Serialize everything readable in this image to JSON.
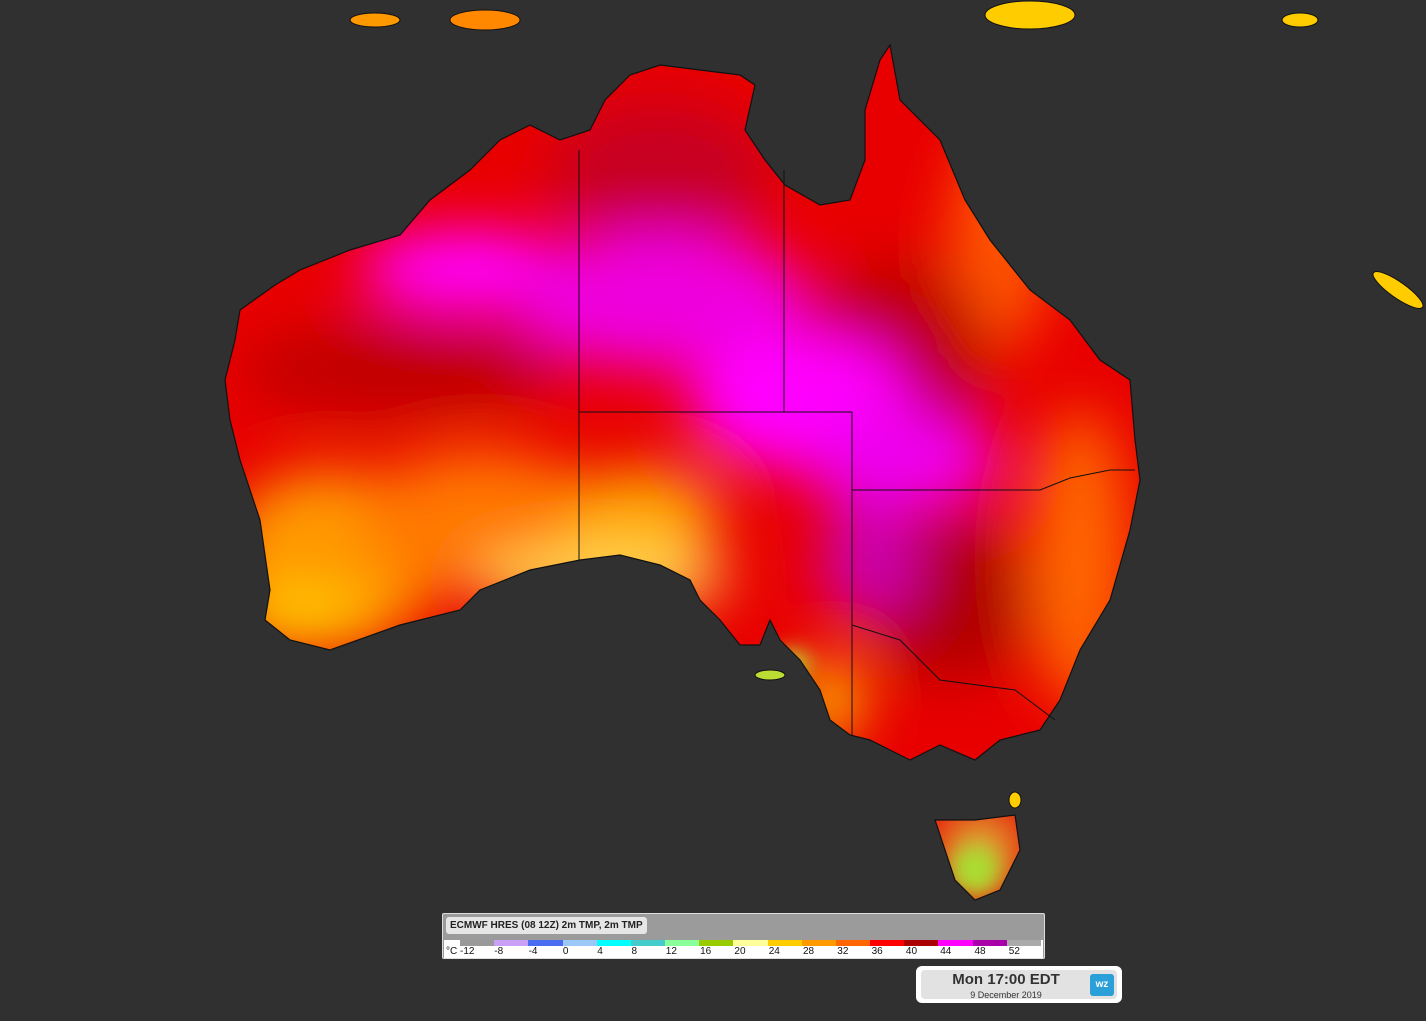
{
  "legend": {
    "title": "ECMWF HRES (08 12Z) 2m TMP, 2m TMP",
    "unit": "°C",
    "ticks": [
      "-12",
      "-8",
      "-4",
      "0",
      "4",
      "8",
      "12",
      "16",
      "20",
      "24",
      "28",
      "32",
      "36",
      "40",
      "44",
      "48",
      "52"
    ],
    "colors": [
      "#9a9a9a",
      "#c9a0f5",
      "#4a6cf0",
      "#9cc8f8",
      "#00ffff",
      "#44cccc",
      "#88ff99",
      "#99cc00",
      "#ffff99",
      "#ffcc00",
      "#ff9900",
      "#ff6600",
      "#ff0000",
      "#aa0000",
      "#ff00ff",
      "#aa00aa",
      "#aaaaaa"
    ]
  },
  "timestamp": {
    "main": "Mon 17:00 EDT",
    "date": "9 December 2019",
    "logo": "wz"
  },
  "map": {
    "background": "#303030",
    "variable": "2m temperature"
  }
}
